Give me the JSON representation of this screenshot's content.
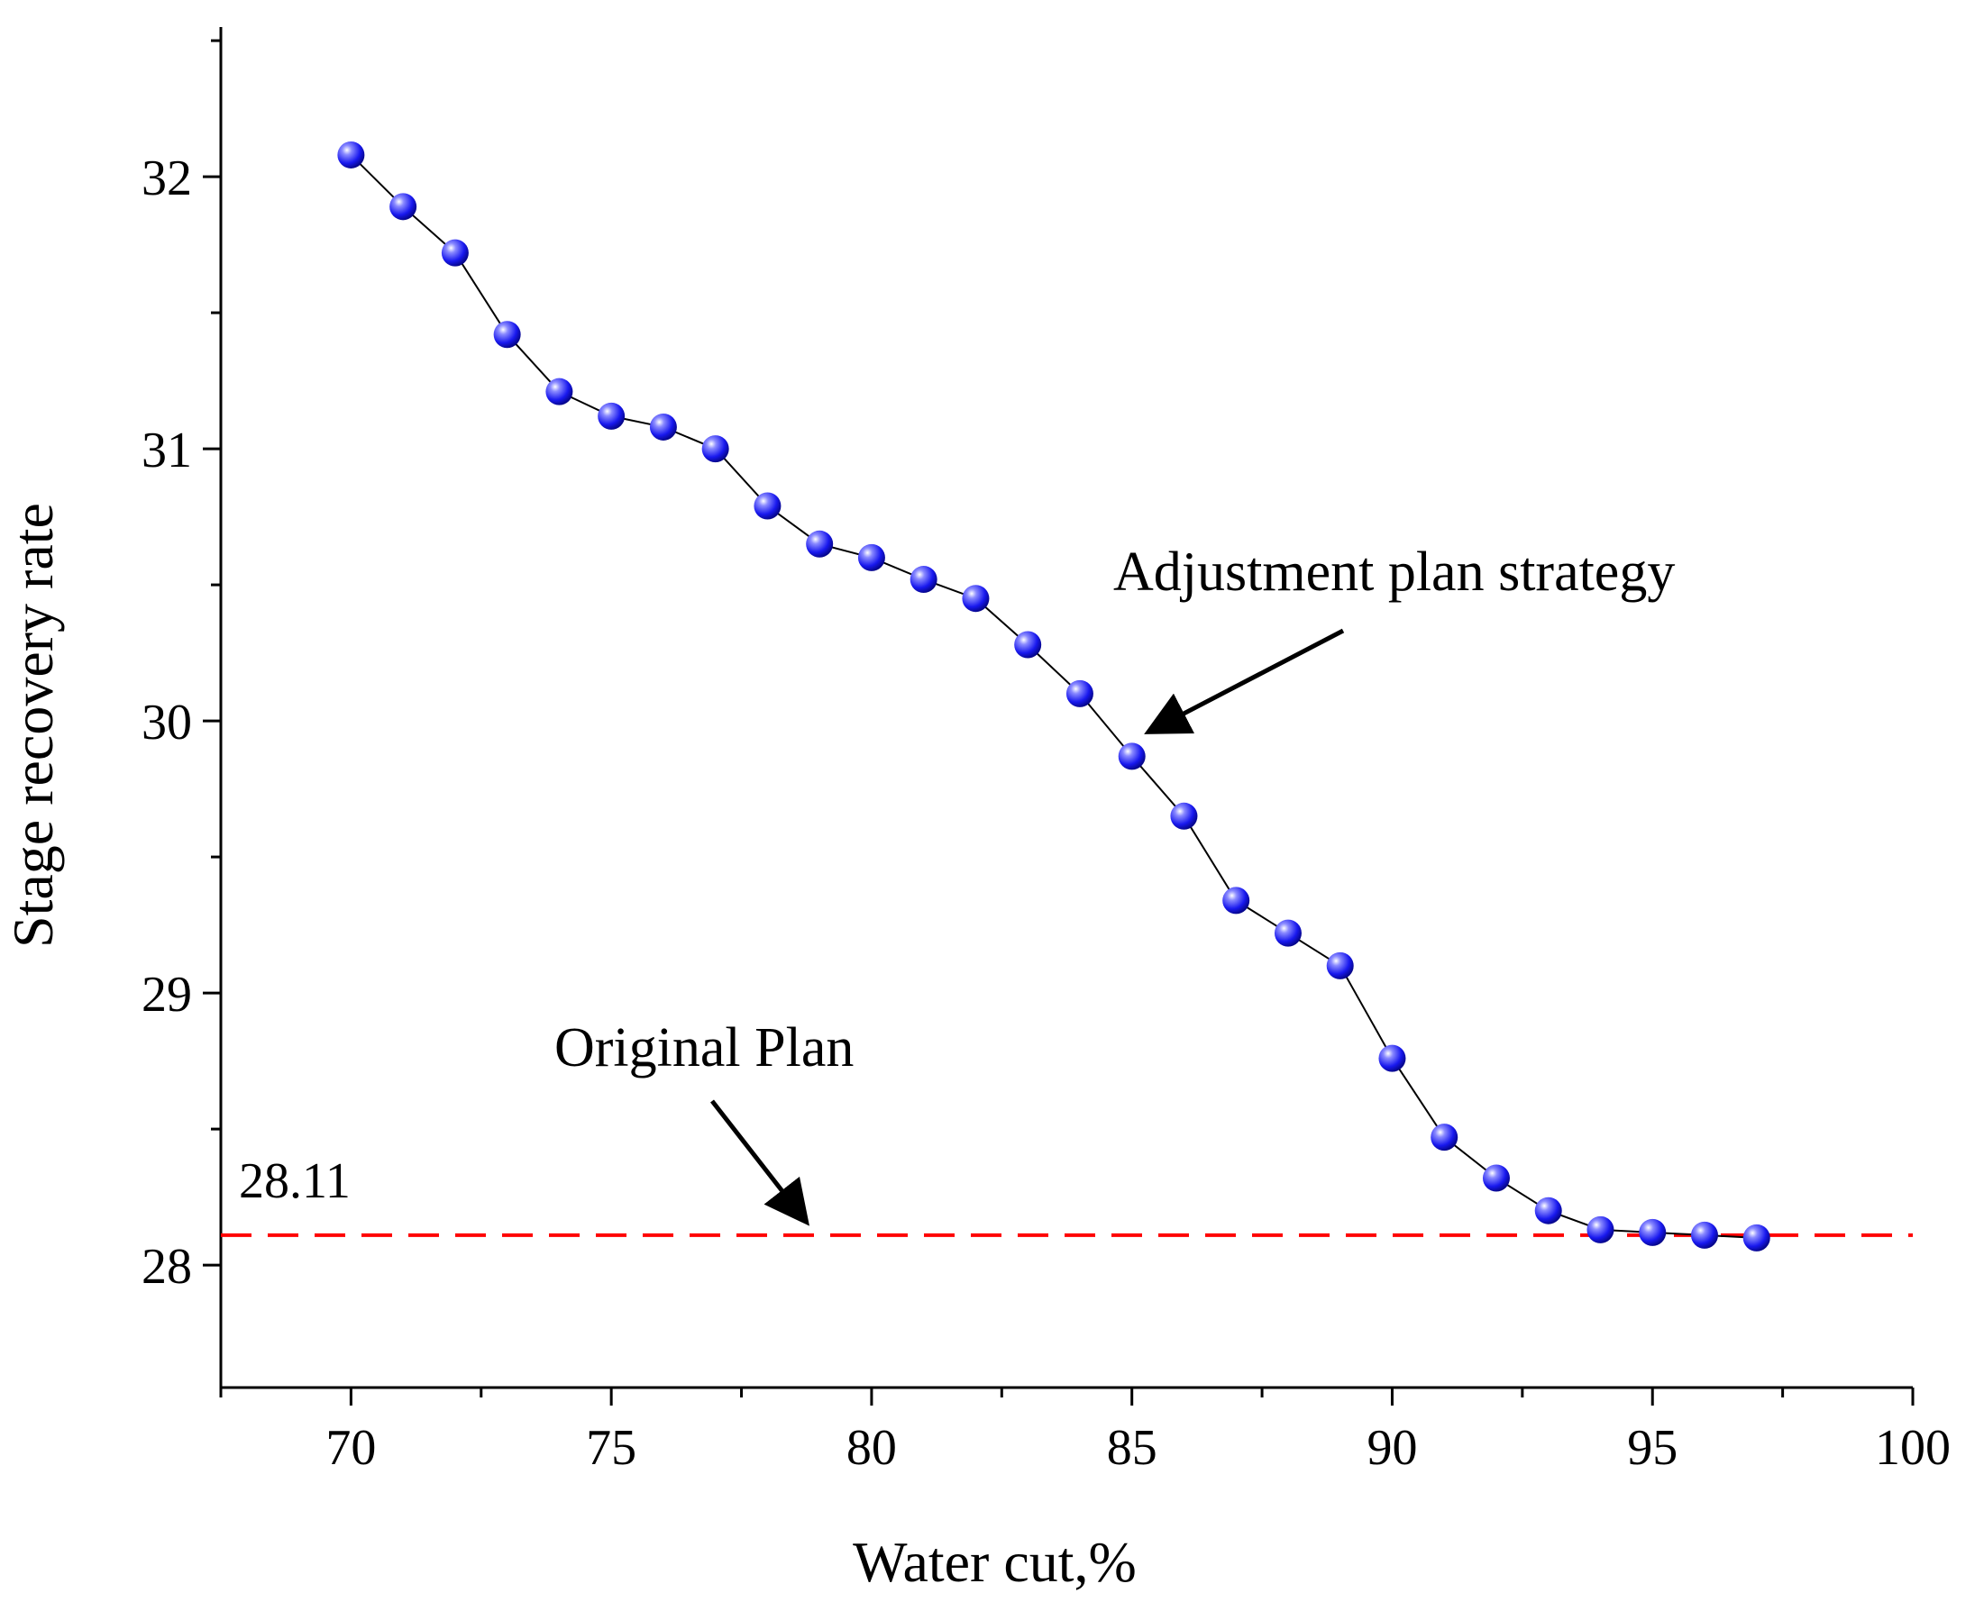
{
  "chart_data": {
    "type": "line",
    "title": "",
    "xlabel": "Water cut,%",
    "ylabel": "Stage recovery rate",
    "xlim": [
      67.5,
      100
    ],
    "ylim": [
      27.55,
      32.55
    ],
    "x_ticks": [
      70,
      75,
      80,
      85,
      90,
      95,
      100
    ],
    "y_ticks": [
      28,
      29,
      30,
      31,
      32
    ],
    "grid": false,
    "series": [
      {
        "name": "Adjustment plan strategy",
        "color": "#1a1aff",
        "marker": "sphere",
        "x": [
          70,
          71,
          72,
          73,
          74,
          75,
          76,
          77,
          78,
          79,
          80,
          81,
          82,
          83,
          84,
          85,
          86,
          87,
          88,
          89,
          90,
          91,
          92,
          93,
          94,
          95,
          96,
          97
        ],
        "values": [
          32.08,
          31.89,
          31.72,
          31.42,
          31.21,
          31.12,
          31.08,
          31.0,
          30.79,
          30.65,
          30.6,
          30.52,
          30.45,
          30.28,
          30.1,
          29.87,
          29.65,
          29.34,
          29.22,
          29.1,
          28.76,
          28.47,
          28.32,
          28.2,
          28.13,
          28.12,
          28.11,
          28.1
        ]
      }
    ],
    "reference_line": {
      "name": "Original Plan",
      "value": 28.11,
      "label": "28.11",
      "color": "#ff0000",
      "style": "dashed"
    },
    "annotations": [
      {
        "text": "Adjustment plan strategy",
        "arrow_to_x": 85.3,
        "arrow_to_y": 29.9
      },
      {
        "text": "Original Plan",
        "arrow_to_x": 78.7,
        "arrow_to_y": 28.17
      }
    ]
  }
}
